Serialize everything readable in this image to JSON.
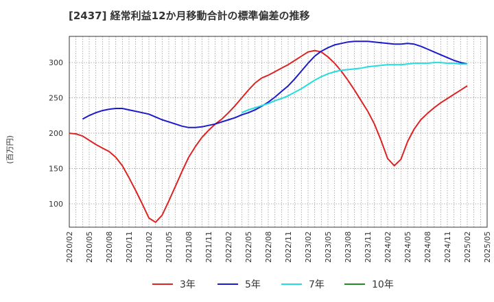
{
  "chart_data": {
    "type": "line",
    "title": "[2437]  経常利益12か月移動合計の標準偏差の推移",
    "ylabel": "(百万円)",
    "xlabel": "",
    "ylim": [
      67,
      337
    ],
    "yticks": [
      100,
      150,
      200,
      250,
      300
    ],
    "xlim": [
      "2020-02",
      "2025-05"
    ],
    "xticks": [
      "2020/02",
      "2020/05",
      "2020/08",
      "2020/11",
      "2021/02",
      "2021/05",
      "2021/08",
      "2021/11",
      "2022/02",
      "2022/05",
      "2022/08",
      "2022/11",
      "2023/02",
      "2023/05",
      "2023/08",
      "2023/11",
      "2024/02",
      "2024/05",
      "2024/08",
      "2024/11",
      "2025/02",
      "2025/05"
    ],
    "grid": true,
    "legend_position": "bottom",
    "series": [
      {
        "name": "3年",
        "color": "#dd2222",
        "points": [
          [
            "2020-02",
            200
          ],
          [
            "2020-03",
            199
          ],
          [
            "2020-04",
            196
          ],
          [
            "2020-05",
            190
          ],
          [
            "2020-06",
            184
          ],
          [
            "2020-07",
            179
          ],
          [
            "2020-08",
            174
          ],
          [
            "2020-09",
            166
          ],
          [
            "2020-10",
            154
          ],
          [
            "2020-11",
            137
          ],
          [
            "2020-12",
            119
          ],
          [
            "2021-01",
            100
          ],
          [
            "2021-02",
            80
          ],
          [
            "2021-03",
            74
          ],
          [
            "2021-04",
            84
          ],
          [
            "2021-05",
            104
          ],
          [
            "2021-06",
            125
          ],
          [
            "2021-07",
            146
          ],
          [
            "2021-08",
            166
          ],
          [
            "2021-09",
            181
          ],
          [
            "2021-10",
            194
          ],
          [
            "2021-11",
            204
          ],
          [
            "2021-12",
            213
          ],
          [
            "2022-01",
            220
          ],
          [
            "2022-02",
            229
          ],
          [
            "2022-03",
            239
          ],
          [
            "2022-04",
            250
          ],
          [
            "2022-05",
            261
          ],
          [
            "2022-06",
            271
          ],
          [
            "2022-07",
            278
          ],
          [
            "2022-08",
            282
          ],
          [
            "2022-09",
            287
          ],
          [
            "2022-10",
            292
          ],
          [
            "2022-11",
            297
          ],
          [
            "2022-12",
            303
          ],
          [
            "2023-01",
            309
          ],
          [
            "2023-02",
            315
          ],
          [
            "2023-03",
            317
          ],
          [
            "2023-04",
            315
          ],
          [
            "2023-05",
            308
          ],
          [
            "2023-06",
            299
          ],
          [
            "2023-07",
            288
          ],
          [
            "2023-08",
            275
          ],
          [
            "2023-09",
            261
          ],
          [
            "2023-10",
            246
          ],
          [
            "2023-11",
            231
          ],
          [
            "2023-12",
            213
          ],
          [
            "2024-01",
            190
          ],
          [
            "2024-02",
            164
          ],
          [
            "2024-03",
            154
          ],
          [
            "2024-04",
            163
          ],
          [
            "2024-05",
            188
          ],
          [
            "2024-06",
            206
          ],
          [
            "2024-07",
            219
          ],
          [
            "2024-08",
            228
          ],
          [
            "2024-09",
            236
          ],
          [
            "2024-10",
            243
          ],
          [
            "2024-11",
            249
          ],
          [
            "2024-12",
            255
          ],
          [
            "2025-01",
            261
          ],
          [
            "2025-02",
            267
          ]
        ]
      },
      {
        "name": "5年",
        "color": "#1a1acc",
        "points": [
          [
            "2020-04",
            220
          ],
          [
            "2020-05",
            225
          ],
          [
            "2020-06",
            229
          ],
          [
            "2020-07",
            232
          ],
          [
            "2020-08",
            234
          ],
          [
            "2020-09",
            235
          ],
          [
            "2020-10",
            235
          ],
          [
            "2020-11",
            233
          ],
          [
            "2020-12",
            231
          ],
          [
            "2021-01",
            229
          ],
          [
            "2021-02",
            227
          ],
          [
            "2021-03",
            223
          ],
          [
            "2021-04",
            219
          ],
          [
            "2021-05",
            216
          ],
          [
            "2021-06",
            213
          ],
          [
            "2021-07",
            210
          ],
          [
            "2021-08",
            208
          ],
          [
            "2021-09",
            208
          ],
          [
            "2021-10",
            209
          ],
          [
            "2021-11",
            211
          ],
          [
            "2021-12",
            213
          ],
          [
            "2022-01",
            216
          ],
          [
            "2022-02",
            219
          ],
          [
            "2022-03",
            222
          ],
          [
            "2022-04",
            226
          ],
          [
            "2022-05",
            229
          ],
          [
            "2022-06",
            233
          ],
          [
            "2022-07",
            238
          ],
          [
            "2022-08",
            244
          ],
          [
            "2022-09",
            251
          ],
          [
            "2022-10",
            259
          ],
          [
            "2022-11",
            267
          ],
          [
            "2022-12",
            277
          ],
          [
            "2023-01",
            288
          ],
          [
            "2023-02",
            299
          ],
          [
            "2023-03",
            309
          ],
          [
            "2023-04",
            316
          ],
          [
            "2023-05",
            321
          ],
          [
            "2023-06",
            325
          ],
          [
            "2023-07",
            327
          ],
          [
            "2023-08",
            329
          ],
          [
            "2023-09",
            330
          ],
          [
            "2023-10",
            330
          ],
          [
            "2023-11",
            330
          ],
          [
            "2023-12",
            329
          ],
          [
            "2024-01",
            328
          ],
          [
            "2024-02",
            327
          ],
          [
            "2024-03",
            326
          ],
          [
            "2024-04",
            326
          ],
          [
            "2024-05",
            327
          ],
          [
            "2024-06",
            326
          ],
          [
            "2024-07",
            323
          ],
          [
            "2024-08",
            319
          ],
          [
            "2024-09",
            315
          ],
          [
            "2024-10",
            311
          ],
          [
            "2024-11",
            307
          ],
          [
            "2024-12",
            303
          ],
          [
            "2025-01",
            300
          ],
          [
            "2025-02",
            298
          ]
        ]
      },
      {
        "name": "7年",
        "color": "#22dddd",
        "points": [
          [
            "2022-04",
            229
          ],
          [
            "2022-05",
            233
          ],
          [
            "2022-06",
            236
          ],
          [
            "2022-07",
            239
          ],
          [
            "2022-08",
            242
          ],
          [
            "2022-09",
            246
          ],
          [
            "2022-10",
            249
          ],
          [
            "2022-11",
            253
          ],
          [
            "2022-12",
            258
          ],
          [
            "2023-01",
            263
          ],
          [
            "2023-02",
            269
          ],
          [
            "2023-03",
            275
          ],
          [
            "2023-04",
            280
          ],
          [
            "2023-05",
            284
          ],
          [
            "2023-06",
            287
          ],
          [
            "2023-07",
            289
          ],
          [
            "2023-08",
            290
          ],
          [
            "2023-09",
            291
          ],
          [
            "2023-10",
            292
          ],
          [
            "2023-11",
            294
          ],
          [
            "2023-12",
            295
          ],
          [
            "2024-01",
            296
          ],
          [
            "2024-02",
            297
          ],
          [
            "2024-03",
            297
          ],
          [
            "2024-04",
            297
          ],
          [
            "2024-05",
            298
          ],
          [
            "2024-06",
            299
          ],
          [
            "2024-07",
            299
          ],
          [
            "2024-08",
            299
          ],
          [
            "2024-09",
            300
          ],
          [
            "2024-10",
            300
          ],
          [
            "2024-11",
            299
          ],
          [
            "2024-12",
            299
          ],
          [
            "2025-01",
            298
          ],
          [
            "2025-02",
            298
          ]
        ]
      },
      {
        "name": "10年",
        "color": "#228822",
        "points": []
      }
    ]
  }
}
